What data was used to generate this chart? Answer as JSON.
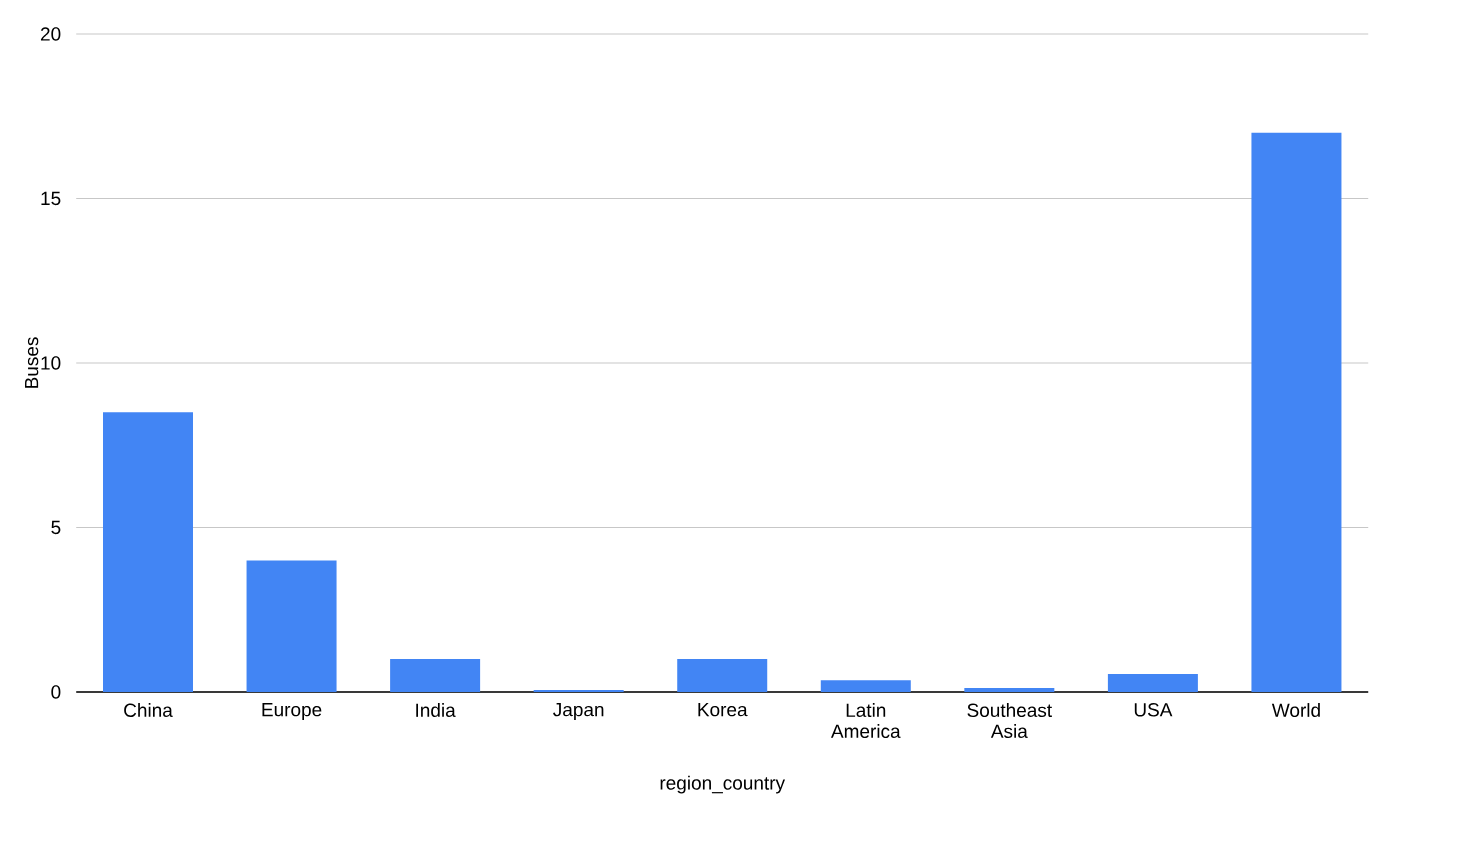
{
  "chart_data": {
    "type": "bar",
    "xlabel": "region_country",
    "ylabel": "Buses",
    "categories": [
      "China",
      "Europe",
      "India",
      "Japan",
      "Korea",
      "Latin America",
      "Southeast Asia",
      "USA",
      "World"
    ],
    "values": [
      8.5,
      4,
      1,
      0.06,
      1,
      0.36,
      0.12,
      0.55,
      17
    ],
    "color": "#4285f4",
    "ylim": [
      0,
      20
    ],
    "yticks": [
      0,
      5,
      10,
      15,
      20
    ],
    "grid": "y"
  }
}
